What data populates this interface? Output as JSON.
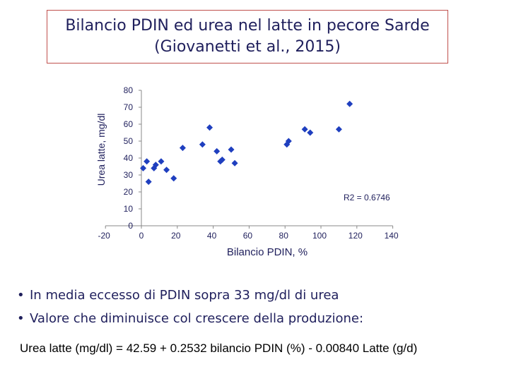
{
  "title": {
    "line1": "Bilancio PDIN ed urea nel latte in pecore Sarde",
    "line2": "(Giovanetti et al., 2015)"
  },
  "chart_data": {
    "type": "scatter",
    "xlabel": "Bilancio PDIN, %",
    "ylabel": "Urea latte, mg/dl",
    "xlim": [
      -20,
      140
    ],
    "ylim": [
      0,
      80
    ],
    "x_ticks": [
      -20,
      0,
      20,
      40,
      60,
      80,
      100,
      120,
      140
    ],
    "y_ticks": [
      0,
      10,
      20,
      30,
      40,
      50,
      60,
      70,
      80
    ],
    "annotation": "R2 = 0.6746",
    "marker_color": "#1f3fbf",
    "grid": false,
    "points": [
      {
        "x": 1,
        "y": 34
      },
      {
        "x": 3,
        "y": 38
      },
      {
        "x": 4,
        "y": 26
      },
      {
        "x": 7,
        "y": 34
      },
      {
        "x": 8,
        "y": 36
      },
      {
        "x": 11,
        "y": 38
      },
      {
        "x": 14,
        "y": 33
      },
      {
        "x": 18,
        "y": 28
      },
      {
        "x": 23,
        "y": 46
      },
      {
        "x": 34,
        "y": 48
      },
      {
        "x": 38,
        "y": 58
      },
      {
        "x": 42,
        "y": 44
      },
      {
        "x": 44,
        "y": 38
      },
      {
        "x": 45,
        "y": 39
      },
      {
        "x": 50,
        "y": 45
      },
      {
        "x": 52,
        "y": 37
      },
      {
        "x": 81,
        "y": 48
      },
      {
        "x": 82,
        "y": 50
      },
      {
        "x": 91,
        "y": 57
      },
      {
        "x": 94,
        "y": 55
      },
      {
        "x": 110,
        "y": 57
      },
      {
        "x": 116,
        "y": 72
      }
    ]
  },
  "bullets": [
    "In media eccesso di PDIN sopra 33 mg/dl di urea",
    "Valore che diminuisce col crescere della produzione:"
  ],
  "formula": "Urea latte (mg/dl) = 42.59 + 0.2532 bilancio PDIN (%) - 0.00840 Latte (g/d)"
}
